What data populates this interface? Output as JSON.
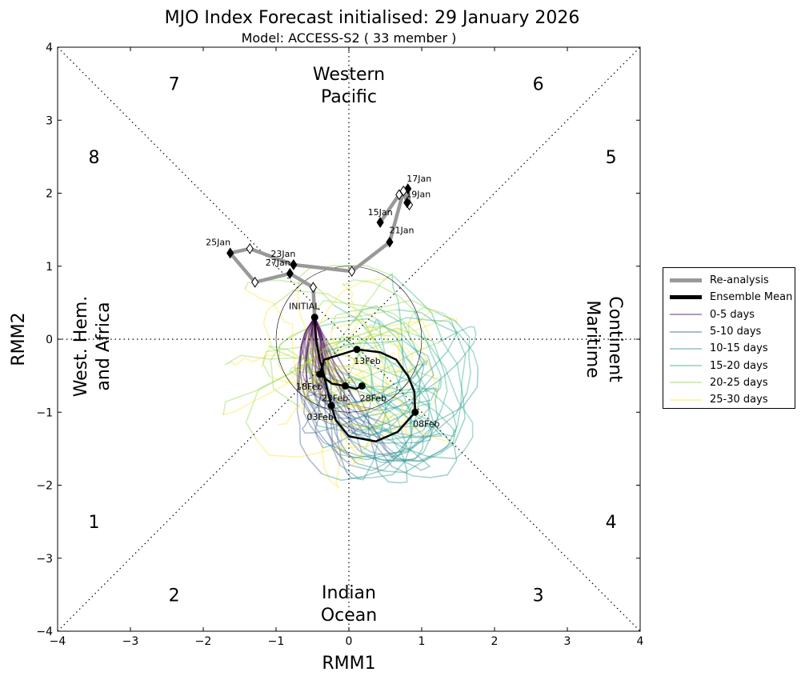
{
  "chart_data": {
    "type": "line",
    "title": "MJO Index Forecast initialised:  29  January 2026",
    "subtitle": "Model: ACCESS-S2 ( 33 member )",
    "xlabel": "RMM1",
    "ylabel": "RMM2",
    "xlim": [
      -4,
      4
    ],
    "ylim": [
      -4,
      4
    ],
    "xticks": [
      "−4",
      "−3",
      "−2",
      "−1",
      "0",
      "1",
      "2",
      "3",
      "4"
    ],
    "yticks": [
      "−4",
      "−3",
      "−2",
      "−1",
      "0",
      "1",
      "2",
      "3",
      "4"
    ],
    "phases": [
      "1",
      "2",
      "3",
      "4",
      "5",
      "6",
      "7",
      "8"
    ],
    "regions": {
      "top": [
        "Western",
        "Pacific"
      ],
      "bottom": [
        "Indian",
        "Ocean"
      ],
      "left": [
        "West. Hem.",
        "and Africa"
      ],
      "right": [
        "Maritime",
        "Continent"
      ]
    },
    "unit_circle_radius": 1,
    "legend_position": "outside-right",
    "legend": [
      {
        "label": "Re-analysis",
        "color": "#999999"
      },
      {
        "label": "Ensemble Mean",
        "color": "#000000"
      },
      {
        "label": "0-5 days",
        "color": "#440154"
      },
      {
        "label": "5-10 days",
        "color": "#3b528b"
      },
      {
        "label": "10-15 days",
        "color": "#21918c"
      },
      {
        "label": "15-20 days",
        "color": "#27ad81"
      },
      {
        "label": "20-25 days",
        "color": "#8fd744"
      },
      {
        "label": "25-30 days",
        "color": "#fde725"
      }
    ],
    "reanalysis": [
      {
        "date": "15Jan",
        "x": 0.43,
        "y": 1.6,
        "marker": "filled",
        "label": "15Jan"
      },
      {
        "date": "16Jan",
        "x": 0.69,
        "y": 1.98,
        "marker": "open"
      },
      {
        "date": "17Jan",
        "x": 0.81,
        "y": 2.06,
        "marker": "filled",
        "label": "17Jan"
      },
      {
        "date": "18Jan",
        "x": 0.83,
        "y": 1.84,
        "marker": "open"
      },
      {
        "date": "19Jan",
        "x": 0.8,
        "y": 1.87,
        "marker": "filled",
        "label": "19Jan"
      },
      {
        "date": "20Jan",
        "x": 0.75,
        "y": 2.03,
        "marker": "open"
      },
      {
        "date": "21Jan",
        "x": 0.56,
        "y": 1.33,
        "marker": "filled",
        "label": "21Jan"
      },
      {
        "date": "22Jan",
        "x": 0.04,
        "y": 0.93,
        "marker": "open"
      },
      {
        "date": "23Jan",
        "x": -0.76,
        "y": 1.02,
        "marker": "filled",
        "label": "23Jan"
      },
      {
        "date": "24Jan",
        "x": -1.36,
        "y": 1.24,
        "marker": "open"
      },
      {
        "date": "25Jan",
        "x": -1.63,
        "y": 1.18,
        "marker": "filled",
        "label": "25Jan"
      },
      {
        "date": "26Jan",
        "x": -1.29,
        "y": 0.78,
        "marker": "open"
      },
      {
        "date": "27Jan",
        "x": -0.81,
        "y": 0.9,
        "marker": "filled",
        "label": "27Jan"
      },
      {
        "date": "28Jan",
        "x": -0.49,
        "y": 0.71,
        "marker": "open"
      },
      {
        "date": "29Jan",
        "x": -0.47,
        "y": 0.3,
        "marker": "initial"
      }
    ],
    "initial_label": "INITIAL",
    "ensemble_mean": [
      {
        "x": -0.47,
        "y": 0.3
      },
      {
        "x": -0.45,
        "y": -0.01
      },
      {
        "x": -0.4,
        "y": -0.28
      },
      {
        "x": -0.34,
        "y": -0.5
      },
      {
        "x": -0.29,
        "y": -0.72
      },
      {
        "x": -0.24,
        "y": -0.91,
        "label": "03Feb"
      },
      {
        "x": -0.18,
        "y": -1.11
      },
      {
        "x": 0.0,
        "y": -1.33
      },
      {
        "x": 0.37,
        "y": -1.4
      },
      {
        "x": 0.67,
        "y": -1.27
      },
      {
        "x": 0.91,
        "y": -1.0,
        "label": "08Feb"
      },
      {
        "x": 0.9,
        "y": -0.72
      },
      {
        "x": 0.81,
        "y": -0.5
      },
      {
        "x": 0.65,
        "y": -0.28
      },
      {
        "x": 0.43,
        "y": -0.18
      },
      {
        "x": 0.11,
        "y": -0.14,
        "label": "13Feb"
      },
      {
        "x": -0.34,
        "y": -0.28
      },
      {
        "x": -0.4,
        "y": -0.48,
        "label": "18Feb"
      },
      {
        "x": -0.23,
        "y": -0.61
      },
      {
        "x": -0.05,
        "y": -0.64,
        "label": "23Feb"
      },
      {
        "x": 0.1,
        "y": -0.68
      },
      {
        "x": 0.18,
        "y": -0.64,
        "label": "28Feb"
      }
    ],
    "ensemble_members": 33
  }
}
